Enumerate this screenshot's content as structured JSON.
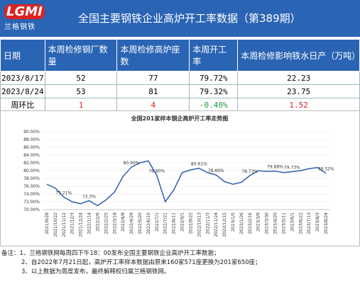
{
  "header": {
    "logo_mark": "LGMI",
    "logo_text": "兰格钢铁",
    "title": "全国主要钢铁企业高炉开工率数据（第389期）"
  },
  "table": {
    "headers": [
      "日期",
      "本周检修钢厂数量",
      "本周检修高炉座数",
      "本周开工率",
      "本周检修影响铁水日产（万吨）"
    ],
    "rows": [
      [
        "2023/8/17",
        "52",
        "77",
        "79.72%",
        "22.23"
      ],
      [
        "2023/8/24",
        "53",
        "81",
        "79.32%",
        "23.75"
      ],
      [
        "周环比",
        "1",
        "4",
        "-0.40%",
        "1.52"
      ]
    ]
  },
  "chart": {
    "type": "line",
    "title": "全国201家样本钢企高炉开工率走势图",
    "color": "#2e5fb0",
    "categories": [
      "2021/9/28",
      "2021/10/22",
      "2021/11/12",
      "2021/12/3",
      "2021/12/24",
      "2022/1/14",
      "2022/2/6",
      "2022/2/25",
      "2022/3/18",
      "2022/4/8",
      "2022/4/29",
      "2022/5/20",
      "2022/6/10",
      "2022/7/1",
      "2022/7/21",
      "2022/8/11",
      "2022/9/1",
      "2022/9/22",
      "2022/10/13",
      "2022/11/3",
      "2022/11/24",
      "2022/12/15",
      "2023/1/5",
      "2023/1/26",
      "2023/2/16",
      "2023/3/9",
      "2023/3/30",
      "2023/4/20",
      "2023/5/11",
      "2023/6/1",
      "2023/6/22",
      "2023/7/13",
      "2023/8/3",
      "2023/8/24"
    ],
    "values": [
      76.5,
      75.5,
      73.21,
      72,
      71.5,
      72.3,
      71,
      72.5,
      74.5,
      78.5,
      80.9,
      82,
      82.5,
      78.8,
      72,
      75,
      79.5,
      80.2,
      80.61,
      79.5,
      78.89,
      77.2,
      76.5,
      77,
      78.73,
      80,
      79.8,
      79.88,
      79.5,
      79.73,
      80,
      80.5,
      80.8,
      79.32
    ],
    "value_labels": [
      null,
      null,
      "73.21%",
      null,
      null,
      "72.3%",
      null,
      null,
      null,
      null,
      "80.90%",
      null,
      null,
      "78.80%",
      null,
      null,
      null,
      null,
      "80.61%",
      null,
      "78.89%",
      null,
      null,
      null,
      "78.73%",
      null,
      null,
      "79.88%",
      null,
      "79.73%",
      null,
      null,
      null,
      "79.32%"
    ],
    "ylim": [
      70,
      90
    ],
    "yticks": [
      {
        "value": 70,
        "label": "70.00%"
      },
      {
        "value": 72,
        "label": "72.00%"
      },
      {
        "value": 74,
        "label": "74.00%"
      },
      {
        "value": 76,
        "label": "76.00%"
      },
      {
        "value": 78,
        "label": "78.00%"
      },
      {
        "value": 80,
        "label": "80.00%"
      },
      {
        "value": 82,
        "label": "82.00%"
      },
      {
        "value": 84,
        "label": "84.00%"
      },
      {
        "value": 86,
        "label": "86.00%"
      },
      {
        "value": 88,
        "label": "88.00%"
      },
      {
        "value": 90,
        "label": "90.00%"
      }
    ],
    "grid": true
  },
  "notes": [
    "备注：1、兰格钢铁网每周四下午18：00发布全国主要钢铁企业高炉开工率数据；",
    "2、自2022年7月21日起，高炉开工率样本数据由原来160家571座更换为201家650座；",
    "3、以上数据为周度发布，最终解释权归属兰格钢铁网。"
  ]
}
